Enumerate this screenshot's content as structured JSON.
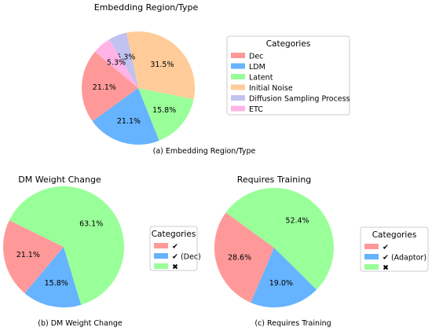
{
  "chart_data": [
    {
      "type": "pie",
      "title": "Embedding Region/Type",
      "caption": "(a) Embedding Region/Type",
      "legend_title": "Categories",
      "legend_position": "right",
      "labels": [
        "Dec",
        "LDM",
        "Latent",
        "Initial Noise",
        "Diffusion Sampling Process",
        "ETC"
      ],
      "values": [
        21.1,
        21.1,
        15.8,
        31.5,
        5.3,
        5.3
      ],
      "value_labels": [
        "21.1%",
        "21.1%",
        "15.8%",
        "31.5%",
        "5.3%",
        "5.3%"
      ],
      "colors": [
        "#ff9999",
        "#66b3ff",
        "#99ff99",
        "#ffcc99",
        "#c2c2f0",
        "#ffb3e6"
      ]
    },
    {
      "type": "pie",
      "title": "DM Weight Change",
      "caption": "(b) DM Weight Change",
      "legend_title": "Categories",
      "legend_position": "right",
      "labels": [
        "✔",
        "✔  (Dec)",
        "✖"
      ],
      "values": [
        21.1,
        15.8,
        63.1
      ],
      "value_labels": [
        "21.1%",
        "15.8%",
        "63.1%"
      ],
      "colors": [
        "#ff9999",
        "#66b3ff",
        "#99ff99"
      ]
    },
    {
      "type": "pie",
      "title": "Requires Training",
      "caption": "(c) Requires Training",
      "legend_title": "Categories",
      "legend_position": "right",
      "labels": [
        "✔",
        "✔  (Adaptor)",
        "✖"
      ],
      "values": [
        28.6,
        19.0,
        52.4
      ],
      "value_labels": [
        "28.6%",
        "19.0%",
        "52.4%"
      ],
      "colors": [
        "#ff9999",
        "#66b3ff",
        "#99ff99"
      ]
    }
  ]
}
